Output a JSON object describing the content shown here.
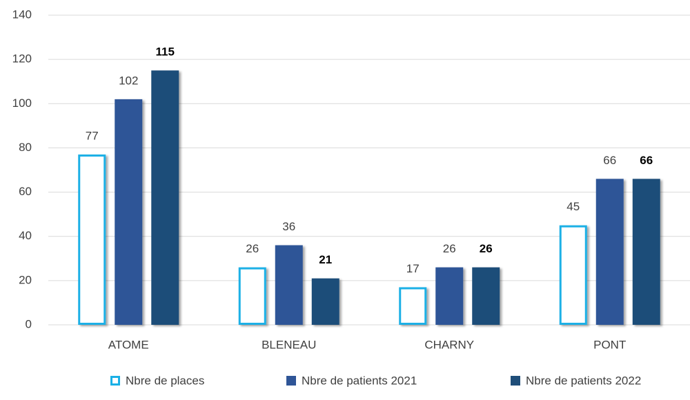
{
  "chart_data": {
    "type": "bar",
    "categories": [
      "ATOME",
      "BLENEAU",
      "CHARNY",
      "PONT"
    ],
    "series": [
      {
        "name": "Nbre de places",
        "color": "#1ab0e6",
        "outline": true,
        "values": [
          77,
          26,
          17,
          45
        ]
      },
      {
        "name": "Nbre de patients 2021",
        "color": "#2f5597",
        "values": [
          102,
          36,
          26,
          66
        ]
      },
      {
        "name": "Nbre de patients 2022",
        "color": "#1f4e79",
        "bold_labels": true,
        "values": [
          115,
          21,
          26,
          66
        ]
      }
    ],
    "ylim": [
      0,
      140
    ],
    "yticks": [
      0,
      20,
      40,
      60,
      80,
      100,
      120,
      140
    ],
    "grid": true,
    "legend": "bottom"
  }
}
